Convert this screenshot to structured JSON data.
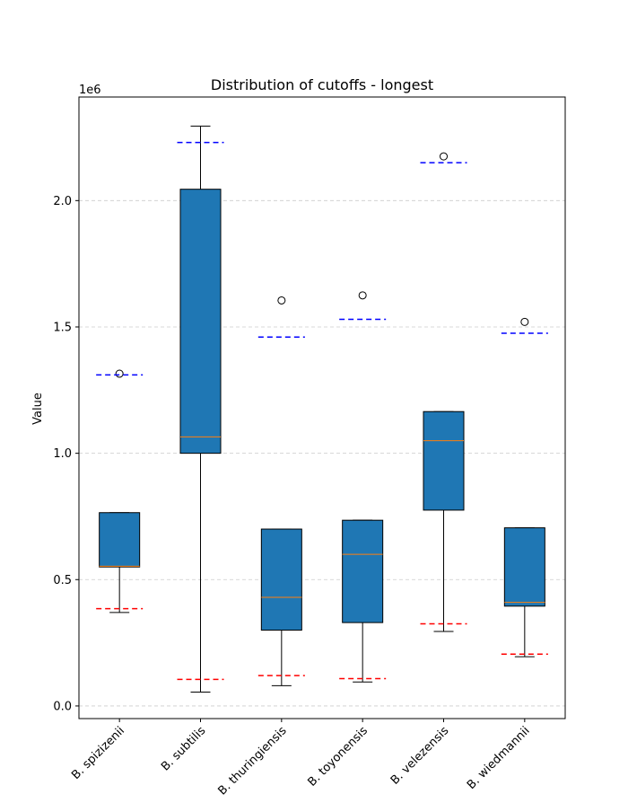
{
  "chart_data": {
    "type": "box",
    "title": "Distribution of cutoffs - longest",
    "xlabel": "",
    "ylabel": "Value",
    "scale_label": "1e6",
    "ylim": [
      -50000,
      2410000
    ],
    "yticks": [
      0,
      500000,
      1000000,
      1500000,
      2000000
    ],
    "ytick_labels": [
      "0.0",
      "0.5",
      "1.0",
      "1.5",
      "2.0"
    ],
    "grid": "horizontal dashed",
    "box_color": "#1f77b4",
    "median_color": "#ff7f0e",
    "upper_ref_color": "#0000ff",
    "lower_ref_color": "#ff0000",
    "categories": [
      "B. spizizenii",
      "B. subtilis",
      "B. thuringiensis",
      "B. toyonensis",
      "B. velezensis",
      "B. wiedmannii"
    ],
    "boxes": [
      {
        "whisker_low": 370000,
        "q1": 550000,
        "median": 553000,
        "q3": 765000,
        "whisker_high": 765000,
        "outliers": [
          1315000
        ],
        "upper_ref": 1310000,
        "lower_ref": 385000
      },
      {
        "whisker_low": 55000,
        "q1": 1000000,
        "median": 1065000,
        "q3": 2045000,
        "whisker_high": 2295000,
        "outliers": [],
        "upper_ref": 2230000,
        "lower_ref": 105000
      },
      {
        "whisker_low": 80000,
        "q1": 300000,
        "median": 430000,
        "q3": 700000,
        "whisker_high": 700000,
        "outliers": [
          1605000
        ],
        "upper_ref": 1460000,
        "lower_ref": 120000
      },
      {
        "whisker_low": 95000,
        "q1": 330000,
        "median": 600000,
        "q3": 735000,
        "whisker_high": 735000,
        "outliers": [
          1625000
        ],
        "upper_ref": 1530000,
        "lower_ref": 108000
      },
      {
        "whisker_low": 295000,
        "q1": 775000,
        "median": 1050000,
        "q3": 1165000,
        "whisker_high": 1165000,
        "outliers": [
          2175000
        ],
        "upper_ref": 2150000,
        "lower_ref": 325000
      },
      {
        "whisker_low": 195000,
        "q1": 395000,
        "median": 410000,
        "q3": 705000,
        "whisker_high": 705000,
        "outliers": [
          1520000
        ],
        "upper_ref": 1475000,
        "lower_ref": 205000
      }
    ]
  }
}
